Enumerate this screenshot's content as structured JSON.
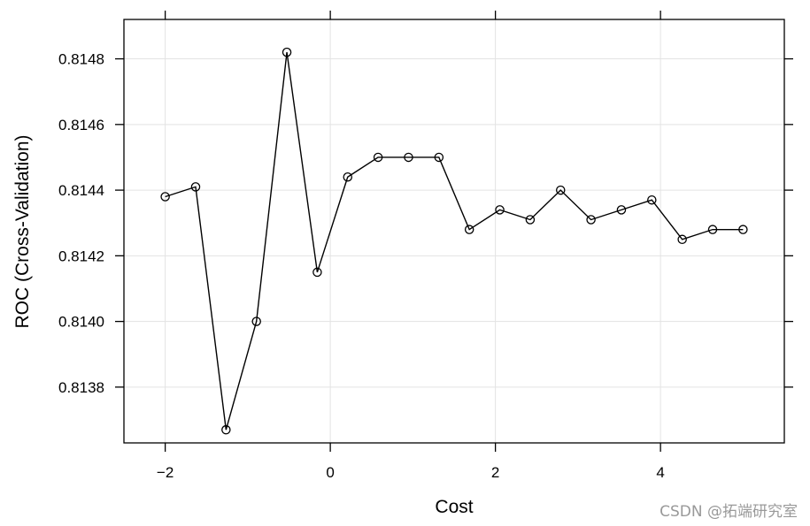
{
  "chart_data": {
    "type": "line",
    "xlabel": "Cost",
    "ylabel": "ROC (Cross-Validation)",
    "xlim": [
      -2.5,
      5.5
    ],
    "ylim": [
      0.81363,
      0.81492
    ],
    "x_ticks": [
      -2,
      0,
      2,
      4
    ],
    "x_tick_labels": [
      "−2",
      "0",
      "2",
      "4"
    ],
    "y_ticks": [
      0.8138,
      0.814,
      0.8142,
      0.8144,
      0.8146,
      0.8148
    ],
    "y_tick_labels": [
      "0.8138",
      "0.8140",
      "0.8142",
      "0.8144",
      "0.8146",
      "0.8148"
    ],
    "grid": true,
    "series": [
      {
        "x": [
          -2.0,
          -1.6316,
          -1.2632,
          -0.8947,
          -0.5263,
          -0.1579,
          0.2105,
          0.5789,
          0.9474,
          1.3158,
          1.6842,
          2.0526,
          2.4211,
          2.7895,
          3.1579,
          3.5263,
          3.8947,
          4.2632,
          4.6316,
          5.0
        ],
        "y": [
          0.81438,
          0.81441,
          0.81367,
          0.814,
          0.81482,
          0.81415,
          0.81444,
          0.8145,
          0.8145,
          0.8145,
          0.81428,
          0.81434,
          0.81431,
          0.8144,
          0.81431,
          0.81434,
          0.81437,
          0.81425,
          0.81428,
          0.81428
        ],
        "marker": "open-circle",
        "color": "#000000"
      }
    ]
  },
  "watermark": "CSDN @拓端研究室"
}
